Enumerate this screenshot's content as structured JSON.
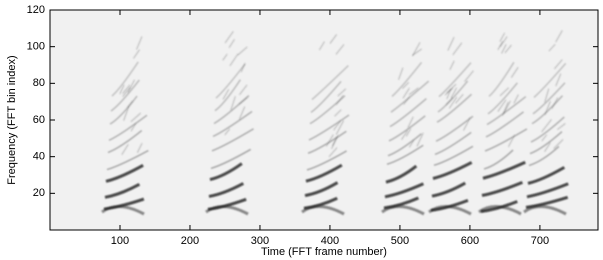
{
  "chart_data": {
    "type": "spectrogram",
    "x_label": "Time (FFT frame number)",
    "y_label": "Frequency (FFT bin index)",
    "xlim": [
      0,
      783
    ],
    "xticks": [
      100,
      200,
      300,
      400,
      500,
      600,
      700
    ],
    "ylim": [
      0,
      120
    ],
    "yticks": [
      20,
      40,
      60,
      80,
      100,
      120
    ],
    "colormap": "gray_r"
  }
}
